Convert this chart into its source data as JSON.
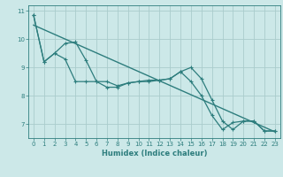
{
  "title": "",
  "xlabel": "Humidex (Indice chaleur)",
  "bg_color": "#cce8e8",
  "grid_color": "#aacccc",
  "line_color": "#2d7d7d",
  "xlim": [
    -0.5,
    23.5
  ],
  "ylim": [
    6.5,
    11.2
  ],
  "yticks": [
    7,
    8,
    9,
    10,
    11
  ],
  "xticks": [
    0,
    1,
    2,
    3,
    4,
    5,
    6,
    7,
    8,
    9,
    10,
    11,
    12,
    13,
    14,
    15,
    16,
    17,
    18,
    19,
    20,
    21,
    22,
    23
  ],
  "series1": [
    [
      0,
      10.85
    ],
    [
      1,
      9.2
    ],
    [
      2,
      9.5
    ],
    [
      3,
      9.85
    ],
    [
      4,
      9.9
    ],
    [
      5,
      9.25
    ],
    [
      6,
      8.5
    ],
    [
      7,
      8.5
    ],
    [
      8,
      8.35
    ],
    [
      9,
      8.45
    ],
    [
      10,
      8.5
    ],
    [
      11,
      8.55
    ],
    [
      12,
      8.55
    ],
    [
      13,
      8.6
    ],
    [
      14,
      8.85
    ],
    [
      15,
      9.0
    ],
    [
      16,
      8.6
    ],
    [
      17,
      7.85
    ],
    [
      18,
      7.1
    ],
    [
      19,
      6.8
    ],
    [
      20,
      7.1
    ],
    [
      21,
      7.1
    ],
    [
      22,
      6.75
    ],
    [
      23,
      6.75
    ]
  ],
  "series2": [
    [
      0,
      10.85
    ],
    [
      1,
      9.2
    ],
    [
      2,
      9.5
    ],
    [
      3,
      9.3
    ],
    [
      4,
      8.5
    ],
    [
      5,
      8.5
    ],
    [
      6,
      8.5
    ],
    [
      7,
      8.3
    ],
    [
      8,
      8.3
    ],
    [
      9,
      8.45
    ],
    [
      10,
      8.5
    ],
    [
      11,
      8.5
    ],
    [
      12,
      8.55
    ],
    [
      13,
      8.6
    ],
    [
      14,
      8.85
    ],
    [
      15,
      8.5
    ],
    [
      16,
      8.0
    ],
    [
      17,
      7.3
    ],
    [
      18,
      6.8
    ],
    [
      19,
      7.05
    ],
    [
      20,
      7.1
    ],
    [
      21,
      7.1
    ],
    [
      22,
      6.75
    ],
    [
      23,
      6.75
    ]
  ],
  "trend_line": [
    [
      0,
      10.5
    ],
    [
      23,
      6.72
    ]
  ],
  "xlabel_fontsize": 6,
  "tick_fontsize": 5,
  "linewidth": 0.9,
  "markersize": 2.5
}
